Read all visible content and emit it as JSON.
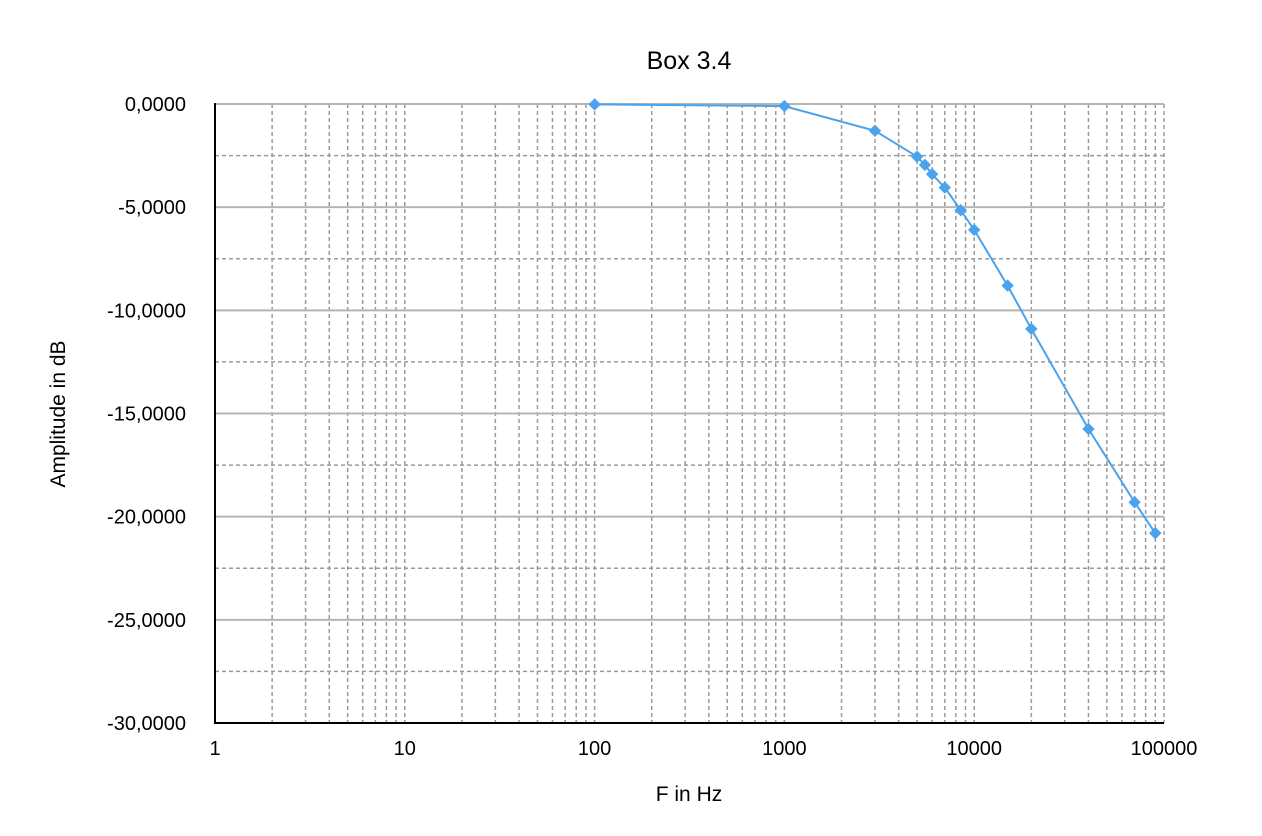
{
  "chart_data": {
    "type": "line",
    "title": "Box 3.4",
    "xlabel": "F in Hz",
    "ylabel": "Amplitude in dB",
    "x_scale": "log",
    "xlim": [
      1,
      100000
    ],
    "ylim": [
      -30,
      0
    ],
    "x_ticks": [
      1,
      10,
      100,
      1000,
      10000,
      100000
    ],
    "x_tick_labels": [
      "1",
      "10",
      "100",
      "1000",
      "10000",
      "100000"
    ],
    "y_ticks": [
      0,
      -5,
      -10,
      -15,
      -20,
      -25,
      -30
    ],
    "y_tick_labels": [
      "0,0000",
      "-5,0000",
      "-10,0000",
      "-15,0000",
      "-20,0000",
      "-25,0000",
      "-30,0000"
    ],
    "grid": true,
    "color": "#4aa3ec",
    "series": [
      {
        "name": "Box 3.4",
        "x": [
          100,
          1000,
          3000,
          5000,
          5500,
          6000,
          7000,
          8500,
          10000,
          15000,
          20000,
          40000,
          70000,
          90000
        ],
        "y": [
          -0.02,
          -0.1,
          -1.3,
          -2.55,
          -2.95,
          -3.4,
          -4.05,
          -5.15,
          -6.1,
          -8.8,
          -10.9,
          -15.75,
          -19.3,
          -20.8
        ]
      }
    ]
  }
}
